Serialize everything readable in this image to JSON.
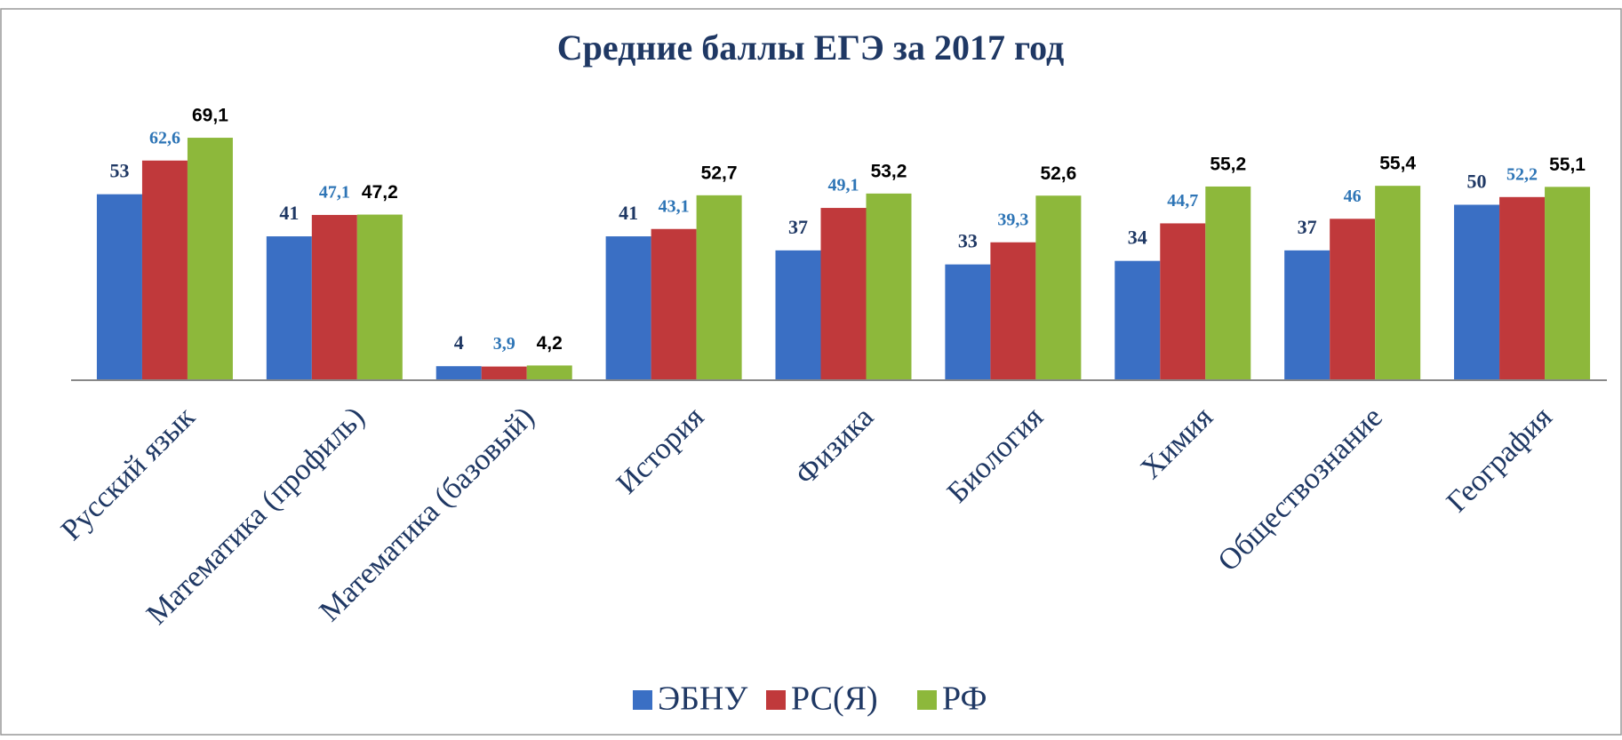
{
  "chart_data": {
    "type": "bar",
    "title": "Средние баллы ЕГЭ за 2017 год",
    "categories": [
      "Русский язык",
      "Математика (профиль)",
      "Математика (базовый)",
      "История",
      "Физика",
      "Биология",
      "Химия",
      "Обществознание",
      "География"
    ],
    "series": [
      {
        "name": "ЭБНУ",
        "color": "#3a6fc4",
        "label_color": "#1f3864",
        "values": [
          53,
          41,
          4,
          41,
          37,
          33,
          34,
          37,
          50
        ]
      },
      {
        "name": "РС(Я)",
        "color": "#c0393b",
        "label_color": "#2e75b6",
        "values": [
          62.6,
          47.1,
          3.9,
          43.1,
          49.1,
          39.3,
          44.7,
          46,
          52.2
        ],
        "value_labels": [
          "62,6",
          "47,1",
          "3,9",
          "43,1",
          "49,1",
          "39,3",
          "44,7",
          "46",
          "52,2"
        ]
      },
      {
        "name": "РФ",
        "color": "#8db83b",
        "label_color": "#000000",
        "values": [
          69.1,
          47.2,
          4.2,
          52.7,
          53.2,
          52.6,
          55.2,
          55.4,
          55.1
        ],
        "value_labels": [
          "69,1",
          "47,2",
          "4,2",
          "52,7",
          "53,2",
          "52,6",
          "55,2",
          "55,4",
          "55,1"
        ]
      }
    ],
    "ylim": [
      0,
      80
    ],
    "legend": "bottom"
  }
}
